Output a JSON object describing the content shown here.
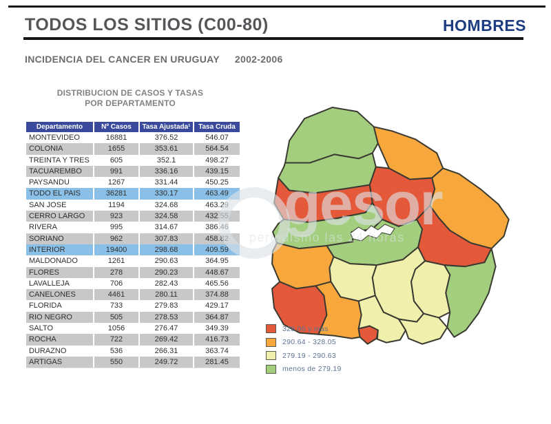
{
  "header": {
    "title": "TODOS LOS SITIOS (C00-80)",
    "gender": "HOMBRES",
    "subtitle": "INCIDENCIA DEL CANCER EN URUGUAY",
    "period": "2002-2006"
  },
  "table": {
    "caption_line1": "DISTRIBUCION DE CASOS Y TASAS",
    "caption_line2": "POR DEPARTAMENTO",
    "columns": [
      "Departamento",
      "Nº Casos",
      "Tasa Ajustada¹",
      "Tasa Cruda"
    ],
    "rows": [
      {
        "departamento": "MONTEVIDEO",
        "casos": "16881",
        "tasa_ajustada": "376.52",
        "tasa_cruda": "546.07",
        "highlight": false
      },
      {
        "departamento": "COLONIA",
        "casos": "1655",
        "tasa_ajustada": "353.61",
        "tasa_cruda": "564.54",
        "highlight": false
      },
      {
        "departamento": "TREINTA Y TRES",
        "casos": "605",
        "tasa_ajustada": "352.1",
        "tasa_cruda": "498.27",
        "highlight": false
      },
      {
        "departamento": "TACUAREMBO",
        "casos": "991",
        "tasa_ajustada": "336.16",
        "tasa_cruda": "439.15",
        "highlight": false
      },
      {
        "departamento": "PAYSANDU",
        "casos": "1267",
        "tasa_ajustada": "331.44",
        "tasa_cruda": "450.25",
        "highlight": false
      },
      {
        "departamento": "TODO EL PAIS",
        "casos": "36281",
        "tasa_ajustada": "330.17",
        "tasa_cruda": "463.49",
        "highlight": true
      },
      {
        "departamento": "SAN JOSE",
        "casos": "1194",
        "tasa_ajustada": "324.68",
        "tasa_cruda": "463.29",
        "highlight": false
      },
      {
        "departamento": "CERRO LARGO",
        "casos": "923",
        "tasa_ajustada": "324.58",
        "tasa_cruda": "432.55",
        "highlight": false
      },
      {
        "departamento": "RIVERA",
        "casos": "995",
        "tasa_ajustada": "314.67",
        "tasa_cruda": "386.46",
        "highlight": false
      },
      {
        "departamento": "SORIANO",
        "casos": "962",
        "tasa_ajustada": "307.83",
        "tasa_cruda": "458.82",
        "highlight": false
      },
      {
        "departamento": "INTERIOR",
        "casos": "19400",
        "tasa_ajustada": "298.68",
        "tasa_cruda": "409.59",
        "highlight": true
      },
      {
        "departamento": "MALDONADO",
        "casos": "1261",
        "tasa_ajustada": "290.63",
        "tasa_cruda": "364.95",
        "highlight": false
      },
      {
        "departamento": "FLORES",
        "casos": "278",
        "tasa_ajustada": "290.23",
        "tasa_cruda": "448.67",
        "highlight": false
      },
      {
        "departamento": "LAVALLEJA",
        "casos": "706",
        "tasa_ajustada": "282.43",
        "tasa_cruda": "465.56",
        "highlight": false
      },
      {
        "departamento": "CANELONES",
        "casos": "4461",
        "tasa_ajustada": "280.11",
        "tasa_cruda": "374.88",
        "highlight": false
      },
      {
        "departamento": "FLORIDA",
        "casos": "733",
        "tasa_ajustada": "279.83",
        "tasa_cruda": "429.17",
        "highlight": false
      },
      {
        "departamento": "RIO NEGRO",
        "casos": "505",
        "tasa_ajustada": "278.53",
        "tasa_cruda": "364.87",
        "highlight": false
      },
      {
        "departamento": "SALTO",
        "casos": "1056",
        "tasa_ajustada": "276.47",
        "tasa_cruda": "349.39",
        "highlight": false
      },
      {
        "departamento": "ROCHA",
        "casos": "722",
        "tasa_ajustada": "269.42",
        "tasa_cruda": "416.73",
        "highlight": false
      },
      {
        "departamento": "DURAZNO",
        "casos": "536",
        "tasa_ajustada": "266.31",
        "tasa_cruda": "363.74",
        "highlight": false
      },
      {
        "departamento": "ARTIGAS",
        "casos": "550",
        "tasa_ajustada": "249.72",
        "tasa_cruda": "281.45",
        "highlight": false
      }
    ]
  },
  "legend": {
    "items": [
      {
        "label": "328.06 y más",
        "category": "red"
      },
      {
        "label": "290.64 - 328.05",
        "category": "orange"
      },
      {
        "label": "279.19 - 290.63",
        "category": "yellow"
      },
      {
        "label": "menos de 279.19",
        "category": "green"
      }
    ]
  },
  "map": {
    "category_colors": {
      "red": "#e4593a",
      "orange": "#f7a73c",
      "yellow": "#f1efac",
      "green": "#a2ce7e"
    },
    "regions": {
      "artigas": "green",
      "salto": "green",
      "rivera": "orange",
      "tacuarembo": "red",
      "paysandu": "red",
      "rio-negro": "green",
      "cerro-largo": "orange",
      "treinta-y-tres": "red",
      "durazno": "green",
      "soriano": "orange",
      "flores": "yellow",
      "florida": "yellow",
      "lavalleja": "yellow",
      "rocha": "green",
      "colonia": "red",
      "san-jose": "orange",
      "canelones": "yellow",
      "montevideo": "red",
      "maldonado": "yellow"
    }
  },
  "watermark": {
    "brand": "gesor",
    "tagline": "periodismo las 24 horas"
  }
}
